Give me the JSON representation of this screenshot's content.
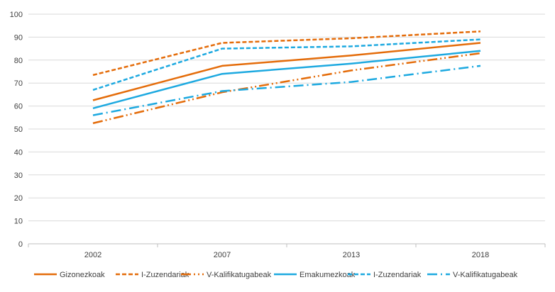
{
  "chart_data": {
    "type": "line",
    "title": "",
    "xlabel": "",
    "ylabel": "",
    "categories": [
      "2002",
      "2007",
      "2013",
      "2018"
    ],
    "ylim": [
      0,
      100
    ],
    "yticks": [
      0,
      10,
      20,
      30,
      40,
      50,
      60,
      70,
      80,
      90,
      100
    ],
    "grid": true,
    "legend_position": "bottom",
    "series": [
      {
        "name": "Gizonezkoak",
        "values": [
          62.5,
          77.5,
          82,
          87.5
        ],
        "color": "#E46C0A",
        "dash": "solid"
      },
      {
        "name": "I-Zuzendariak",
        "values": [
          73.5,
          87.5,
          89.5,
          92.5
        ],
        "color": "#E46C0A",
        "dash": "short-dash"
      },
      {
        "name": "V-Kalifikatugabeak",
        "values": [
          52.5,
          66,
          75.5,
          83
        ],
        "color": "#E46C0A",
        "dash": "long-dash-dot-dot"
      },
      {
        "name": "Emakumezkoak",
        "values": [
          59,
          74,
          78.5,
          84
        ],
        "color": "#1DA9E0",
        "dash": "solid"
      },
      {
        "name": "I-Zuzendariak",
        "values": [
          67,
          85,
          86,
          89
        ],
        "color": "#1DA9E0",
        "dash": "short-dash"
      },
      {
        "name": "V-Kalifikatugabeak",
        "values": [
          56,
          66.5,
          70.5,
          77.5
        ],
        "color": "#1DA9E0",
        "dash": "long-dash-dot"
      }
    ]
  }
}
